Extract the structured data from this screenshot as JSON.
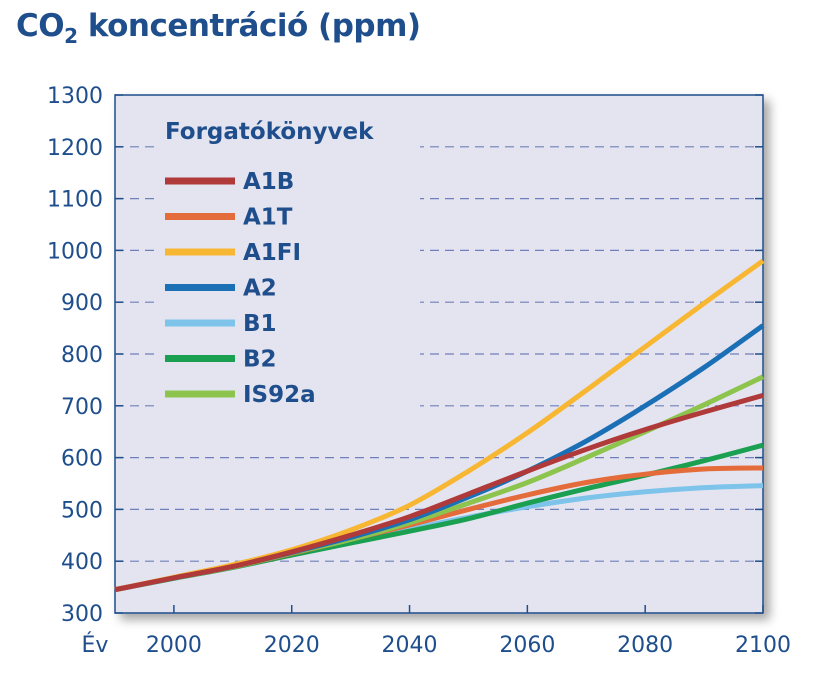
{
  "chart_data": {
    "type": "line",
    "title_main": "CO",
    "title_sub": "2",
    "title_rest": " koncentráció (ppm)",
    "xlabel": "Év",
    "ylabel": "",
    "xlim": [
      1990,
      2100
    ],
    "ylim": [
      300,
      1300
    ],
    "xticks": [
      2000,
      2020,
      2040,
      2060,
      2080,
      2100
    ],
    "yticks": [
      300,
      400,
      500,
      600,
      700,
      800,
      900,
      1000,
      1100,
      1200,
      1300
    ],
    "grid": "horizontal dashed",
    "legend_title": "Forgatókönyvek",
    "legend_position": "top-left",
    "x": [
      1990,
      2000,
      2010,
      2020,
      2030,
      2040,
      2050,
      2060,
      2070,
      2080,
      2090,
      2100
    ],
    "series": [
      {
        "name": "A1B",
        "color": "#b03a3a",
        "values": [
          345,
          368,
          390,
          418,
          450,
          486,
          530,
          574,
          616,
          654,
          688,
          720
        ]
      },
      {
        "name": "A1T",
        "color": "#e46b3a",
        "values": [
          345,
          368,
          389,
          415,
          442,
          470,
          500,
          528,
          552,
          568,
          578,
          580
        ]
      },
      {
        "name": "A1FI",
        "color": "#f7b733",
        "values": [
          345,
          369,
          393,
          422,
          460,
          508,
          574,
          648,
          730,
          814,
          898,
          980
        ]
      },
      {
        "name": "A2",
        "color": "#1b6fb5",
        "values": [
          345,
          368,
          390,
          417,
          446,
          480,
          524,
          574,
          632,
          700,
          774,
          855
        ]
      },
      {
        "name": "B1",
        "color": "#7ec3ea",
        "values": [
          345,
          368,
          388,
          413,
          438,
          462,
          485,
          505,
          522,
          534,
          542,
          546
        ]
      },
      {
        "name": "B2",
        "color": "#1aa050",
        "values": [
          345,
          367,
          388,
          412,
          435,
          458,
          482,
          512,
          540,
          566,
          594,
          624
        ]
      },
      {
        "name": "IS92a",
        "color": "#8cc44e",
        "values": [
          345,
          368,
          389,
          416,
          442,
          474,
          512,
          552,
          600,
          650,
          702,
          756
        ]
      }
    ]
  }
}
